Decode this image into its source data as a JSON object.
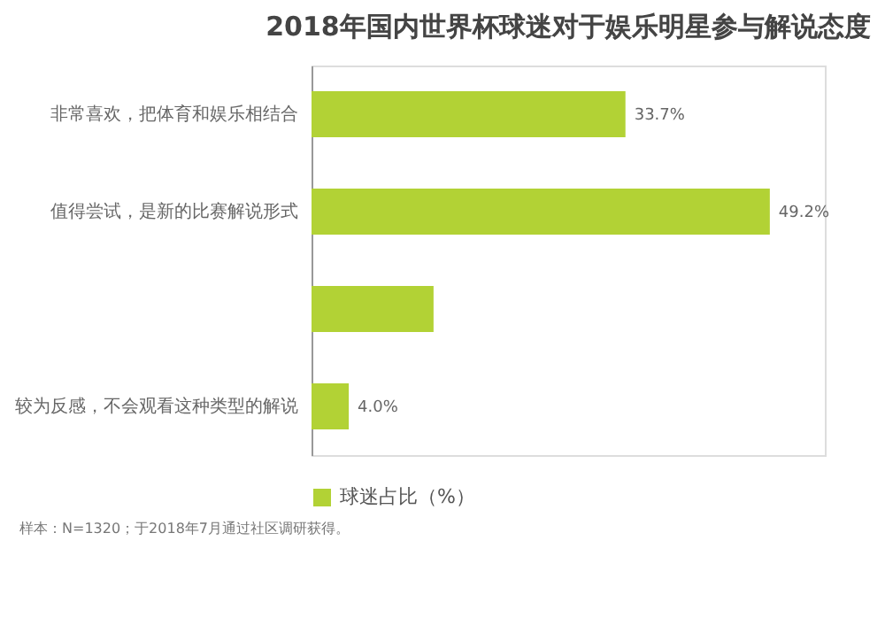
{
  "chart_data": {
    "type": "bar",
    "orientation": "horizontal",
    "title": "2018年国内世界杯球迷对于娱乐明星参与解说态度",
    "categories": [
      "非常喜欢，把体育和娱乐相结合",
      "值得尝试，是新的比赛解说形式",
      null,
      "较为反感，不会观看这种类型的解说"
    ],
    "series": [
      {
        "name": "球迷占比（%）",
        "color": "#b2d235",
        "values": [
          33.7,
          49.2,
          13.1,
          4.0
        ],
        "value_labels": [
          "33.7%",
          "49.2%",
          null,
          "4.0%"
        ]
      }
    ],
    "legend": "bottom",
    "annotations": [
      "样本：N=1320；于2018年7月通过社区调研获得。"
    ]
  }
}
